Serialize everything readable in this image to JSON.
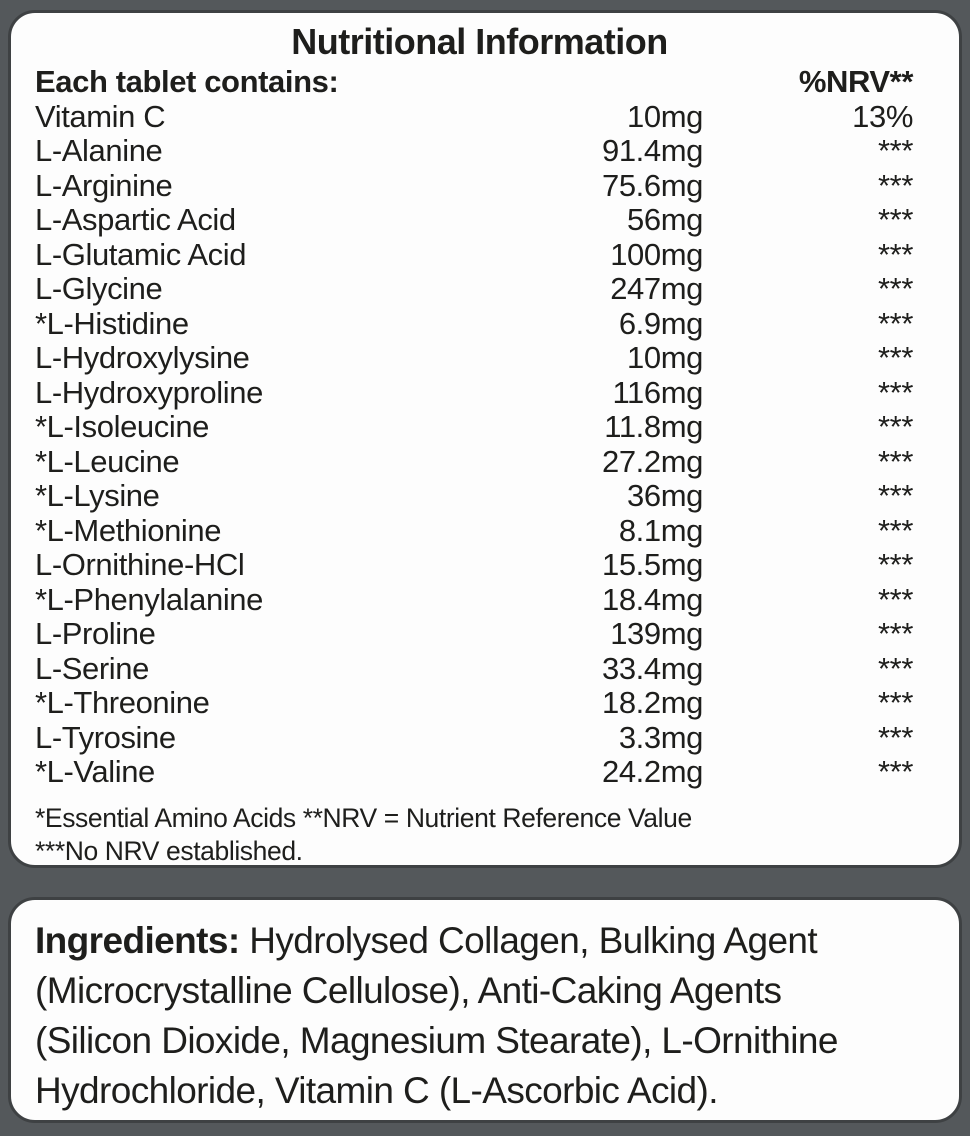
{
  "colors": {
    "background": "#54585b",
    "panel": "#fdfdfd",
    "border": "#3e4143",
    "text": "#1e1e1c"
  },
  "nutrition": {
    "title": "Nutritional Information",
    "header_left": "Each tablet contains:",
    "header_right": "%NRV**",
    "rows": [
      {
        "name": "Vitamin C",
        "amount": "10mg",
        "nrv": "13%"
      },
      {
        "name": "L-Alanine",
        "amount": "91.4mg",
        "nrv": "***"
      },
      {
        "name": "L-Arginine",
        "amount": "75.6mg",
        "nrv": "***"
      },
      {
        "name": "L-Aspartic Acid",
        "amount": "56mg",
        "nrv": "***"
      },
      {
        "name": "L-Glutamic Acid",
        "amount": "100mg",
        "nrv": "***"
      },
      {
        "name": "L-Glycine",
        "amount": "247mg",
        "nrv": "***"
      },
      {
        "name": "*L-Histidine",
        "amount": "6.9mg",
        "nrv": "***"
      },
      {
        "name": "L-Hydroxylysine",
        "amount": "10mg",
        "nrv": "***"
      },
      {
        "name": "L-Hydroxyproline",
        "amount": "116mg",
        "nrv": "***"
      },
      {
        "name": "*L-Isoleucine",
        "amount": "11.8mg",
        "nrv": "***"
      },
      {
        "name": "*L-Leucine",
        "amount": "27.2mg",
        "nrv": "***"
      },
      {
        "name": "*L-Lysine",
        "amount": "36mg",
        "nrv": "***"
      },
      {
        "name": "*L-Methionine",
        "amount": "8.1mg",
        "nrv": "***"
      },
      {
        "name": "L-Ornithine-HCl",
        "amount": "15.5mg",
        "nrv": "***"
      },
      {
        "name": "*L-Phenylalanine",
        "amount": "18.4mg",
        "nrv": "***"
      },
      {
        "name": "L-Proline",
        "amount": "139mg",
        "nrv": "***"
      },
      {
        "name": "L-Serine",
        "amount": "33.4mg",
        "nrv": "***"
      },
      {
        "name": "*L-Threonine",
        "amount": "18.2mg",
        "nrv": "***"
      },
      {
        "name": "L-Tyrosine",
        "amount": "3.3mg",
        "nrv": "***"
      },
      {
        "name": "*L-Valine",
        "amount": "24.2mg",
        "nrv": "***"
      }
    ],
    "footnotes": [
      "*Essential Amino Acids **NRV = Nutrient Reference Value",
      "***No NRV established."
    ]
  },
  "ingredients": {
    "heading": "Ingredients:",
    "lines": [
      "Hydrolysed Collagen, Bulking Agent",
      "(Microcrystalline Cellulose), Anti-Caking Agents",
      "(Silicon Dioxide, Magnesium Stearate), L-Ornithine",
      "Hydrochloride, Vitamin C (L-Ascorbic Acid)."
    ]
  }
}
